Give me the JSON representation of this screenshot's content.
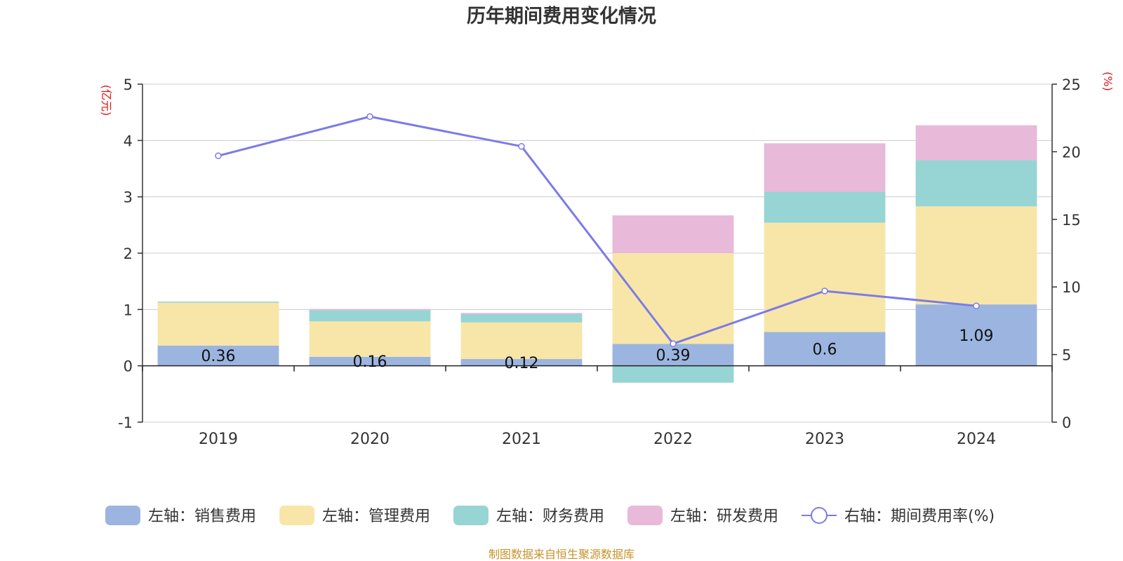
{
  "chart_data": {
    "type": "bar",
    "title": "历年期间费用变化情况",
    "categories": [
      "2019",
      "2020",
      "2021",
      "2022",
      "2023",
      "2024"
    ],
    "left_axis": {
      "unit": "(亿元)",
      "ylim": [
        -1,
        5
      ],
      "ticks": [
        "5",
        "4",
        "3",
        "2",
        "1",
        "0",
        "-1"
      ]
    },
    "right_axis": {
      "unit": "(%)",
      "ylim": [
        0,
        25
      ],
      "ticks": [
        "25",
        "20",
        "15",
        "10",
        "5",
        "0"
      ]
    },
    "series": [
      {
        "name": "左轴：销售费用",
        "axis": "left",
        "kind": "bar",
        "color": "#9bb5e0",
        "values": [
          0.36,
          0.16,
          0.12,
          0.39,
          0.6,
          1.09
        ],
        "labels": [
          "0.36",
          "0.16",
          "0.12",
          "0.39",
          "0.6",
          "1.09"
        ]
      },
      {
        "name": "左轴：管理费用",
        "axis": "left",
        "kind": "bar",
        "color": "#f8e6a8",
        "values": [
          0.76,
          0.63,
          0.65,
          1.61,
          1.94,
          1.74
        ]
      },
      {
        "name": "左轴：财务费用",
        "axis": "left",
        "kind": "bar",
        "color": "#97d4d4",
        "values": [
          0.02,
          0.2,
          0.15,
          -0.3,
          0.55,
          0.82
        ]
      },
      {
        "name": "左轴：研发费用",
        "axis": "left",
        "kind": "bar",
        "color": "#e8b9d8",
        "values": [
          0,
          0.02,
          0.02,
          0.67,
          0.86,
          0.62
        ]
      },
      {
        "name": "右轴：期间费用率(%)",
        "axis": "right",
        "kind": "line",
        "color": "#7b7be8",
        "values": [
          19.7,
          22.6,
          20.4,
          5.8,
          9.7,
          8.6
        ]
      }
    ],
    "legend_position": "bottom",
    "grid": true
  },
  "footer": {
    "source": "制图数据来自恒生聚源数据库"
  }
}
